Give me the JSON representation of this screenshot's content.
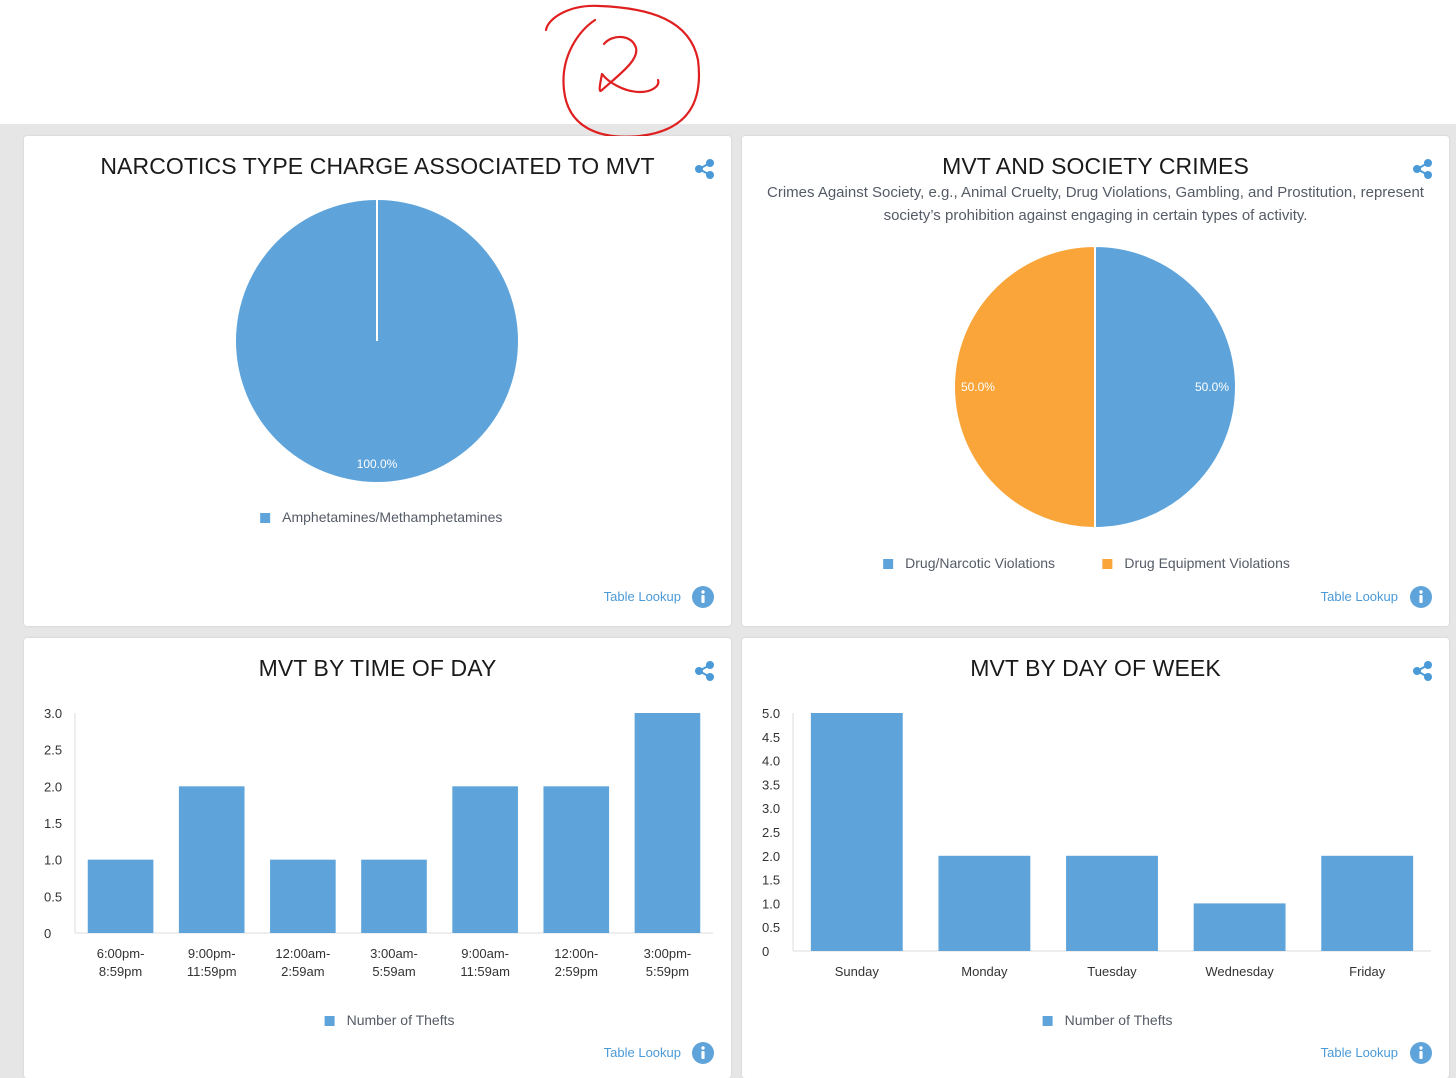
{
  "colors": {
    "accent_blue": "#5ea4db",
    "accent_orange": "#f9a53a",
    "link_blue": "#4a9ad8",
    "annotation_red": "#e02020"
  },
  "annotation": {
    "text": "2"
  },
  "cards": {
    "narcotics": {
      "title": "NARCOTICS TYPE CHARGE ASSOCIATED TO MVT",
      "share_icon": "share-icon",
      "table_lookup": "Table Lookup",
      "info_icon": "info-icon"
    },
    "society": {
      "title": "MVT AND SOCIETY CRIMES",
      "subtitle": "Crimes Against Society, e.g., Animal Cruelty, Drug Violations, Gambling, and Prostitution, represent society’s prohibition against engaging in certain types of activity.",
      "share_icon": "share-icon",
      "table_lookup": "Table Lookup",
      "info_icon": "info-icon"
    },
    "time_of_day": {
      "title": "MVT BY TIME OF DAY",
      "share_icon": "share-icon",
      "table_lookup": "Table Lookup",
      "info_icon": "info-icon"
    },
    "day_of_week": {
      "title": "MVT BY DAY OF WEEK",
      "share_icon": "share-icon",
      "table_lookup": "Table Lookup",
      "info_icon": "info-icon"
    }
  },
  "chart_data": [
    {
      "id": "narcotics",
      "type": "pie",
      "title": "NARCOTICS TYPE CHARGE ASSOCIATED TO MVT",
      "slices": [
        {
          "label": "Amphetamines/Methamphetamines",
          "value": 100.0,
          "display": "100.0%",
          "color": "#5ea4db"
        }
      ],
      "legend": "bottom-center"
    },
    {
      "id": "society",
      "type": "pie",
      "title": "MVT AND SOCIETY CRIMES",
      "slices": [
        {
          "label": "Drug/Narcotic Violations",
          "value": 50.0,
          "display": "50.0%",
          "color": "#5ea4db"
        },
        {
          "label": "Drug Equipment Violations",
          "value": 50.0,
          "display": "50.0%",
          "color": "#f9a53a"
        }
      ],
      "legend": "bottom-center"
    },
    {
      "id": "time_of_day",
      "type": "bar",
      "title": "MVT BY TIME OF DAY",
      "categories": [
        [
          "6:00pm-",
          "8:59pm"
        ],
        [
          "9:00pm-",
          "11:59pm"
        ],
        [
          "12:00am-",
          "2:59am"
        ],
        [
          "3:00am-",
          "5:59am"
        ],
        [
          "9:00am-",
          "11:59am"
        ],
        [
          "12:00n-",
          "2:59pm"
        ],
        [
          "3:00pm-",
          "5:59pm"
        ]
      ],
      "series": [
        {
          "name": "Number of Thefts",
          "values": [
            1,
            2,
            1,
            1,
            2,
            2,
            3
          ],
          "color": "#5ea4db"
        }
      ],
      "yticks": [
        "0",
        "0.5",
        "1.0",
        "1.5",
        "2.0",
        "2.5",
        "3.0"
      ],
      "ylim": [
        0,
        3
      ],
      "legend": "bottom-center",
      "grid": false
    },
    {
      "id": "day_of_week",
      "type": "bar",
      "title": "MVT BY DAY OF WEEK",
      "categories": [
        [
          "Sunday"
        ],
        [
          "Monday"
        ],
        [
          "Tuesday"
        ],
        [
          "Wednesday"
        ],
        [
          "Friday"
        ]
      ],
      "series": [
        {
          "name": "Number of Thefts",
          "values": [
            5,
            2,
            2,
            1,
            2
          ],
          "color": "#5ea4db"
        }
      ],
      "yticks": [
        "0",
        "0.5",
        "1.0",
        "1.5",
        "2.0",
        "2.5",
        "3.0",
        "3.5",
        "4.0",
        "4.5",
        "5.0"
      ],
      "ylim": [
        0,
        5
      ],
      "legend": "bottom-center",
      "grid": false
    }
  ]
}
